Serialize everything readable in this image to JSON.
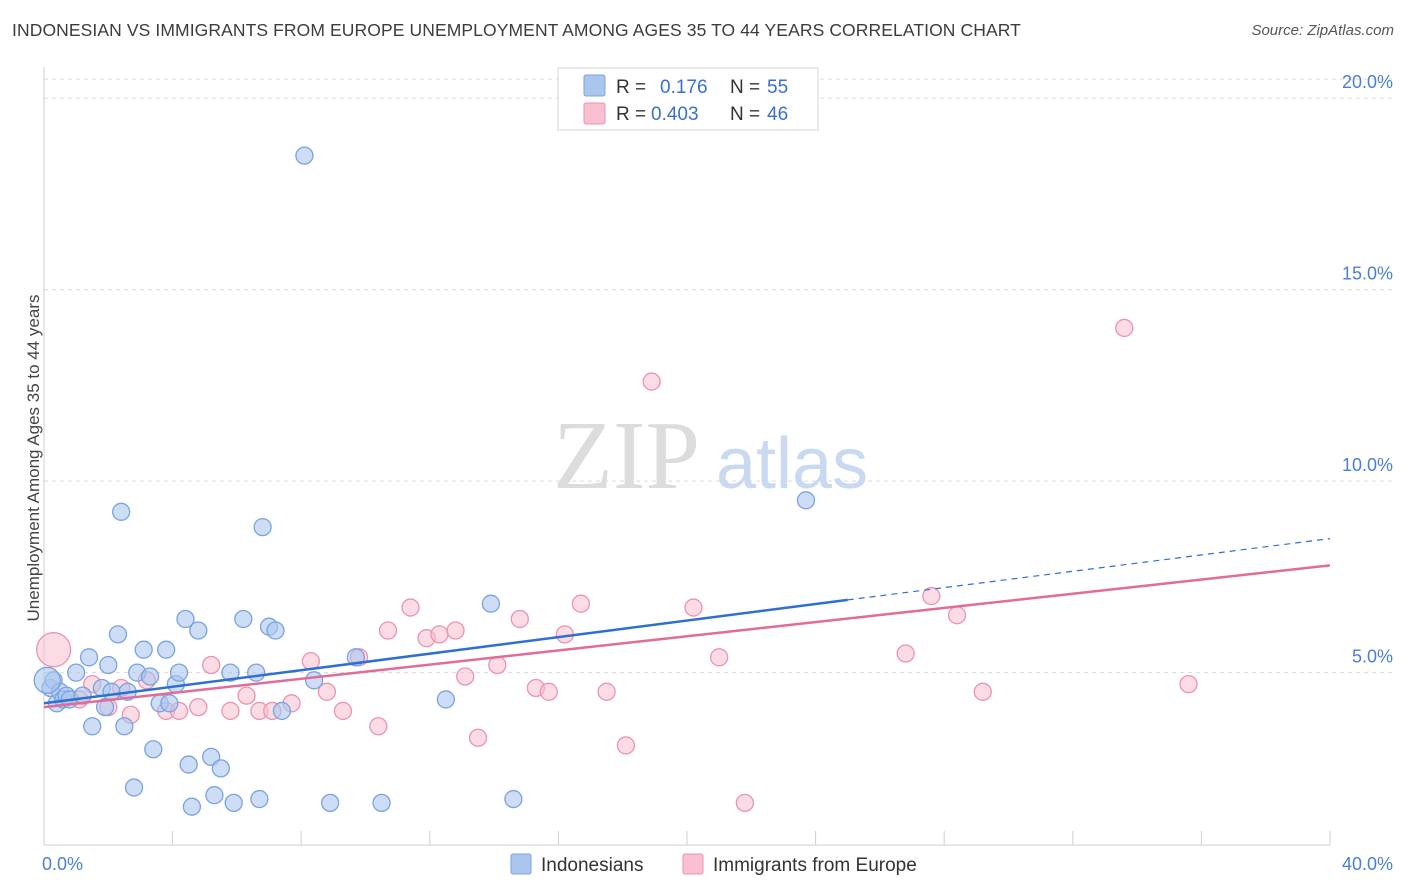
{
  "title": "INDONESIAN VS IMMIGRANTS FROM EUROPE UNEMPLOYMENT AMONG AGES 35 TO 44 YEARS CORRELATION CHART",
  "source": "Source: ZipAtlas.com",
  "watermark": {
    "zip": "ZIP",
    "atlas": "atlas"
  },
  "colors": {
    "blue_fill": "#aac6ee",
    "blue_stroke": "#7aa3df",
    "blue_line": "#2f6fd0",
    "pink_fill": "#f7bfd0",
    "pink_stroke": "#eb93b0",
    "pink_line": "#e26b97",
    "axis_text": "#4a7fd4",
    "grid": "#d9d9d9"
  },
  "legend": {
    "rows": [
      {
        "r_label": "R =",
        "r_value": "0.176",
        "n_label": "N =",
        "n_value": "55"
      },
      {
        "r_label": "R =",
        "r_value": "0.403",
        "n_label": "N =",
        "n_value": "46"
      }
    ]
  },
  "chart_data": {
    "type": "scatter",
    "title": "INDONESIAN VS IMMIGRANTS FROM EUROPE UNEMPLOYMENT AMONG AGES 35 TO 44 YEARS CORRELATION CHART",
    "xlabel": "",
    "ylabel": "Unemployment Among Ages 35 to 44 years",
    "xlim": [
      0,
      40
    ],
    "ylim": [
      0.5,
      20.5
    ],
    "x_tick_labels": [
      {
        "value": 0,
        "label": "0.0%"
      },
      {
        "value": 40,
        "label": "40.0%"
      }
    ],
    "y_tick_labels": [
      {
        "value": 5,
        "label": "5.0%"
      },
      {
        "value": 10,
        "label": "10.0%"
      },
      {
        "value": 15,
        "label": "15.0%"
      },
      {
        "value": 20,
        "label": "20.0%"
      }
    ],
    "series": [
      {
        "name": "Indonesians",
        "r": 0.176,
        "n": 55,
        "trend": {
          "x0": 0,
          "y0": 4.2,
          "x1": 25,
          "y1": 6.9,
          "dash_to_x": 40,
          "dash_to_y": 8.5
        },
        "points": [
          [
            0.2,
            4.6
          ],
          [
            0.3,
            4.8
          ],
          [
            0.4,
            4.2
          ],
          [
            0.5,
            4.5
          ],
          [
            0.6,
            4.3
          ],
          [
            0.7,
            4.4
          ],
          [
            0.8,
            4.3
          ],
          [
            1.0,
            5.0
          ],
          [
            1.4,
            5.4
          ],
          [
            1.5,
            3.6
          ],
          [
            1.8,
            4.6
          ],
          [
            1.9,
            4.1
          ],
          [
            2.0,
            5.2
          ],
          [
            2.1,
            4.5
          ],
          [
            2.3,
            6.0
          ],
          [
            2.4,
            9.2
          ],
          [
            2.5,
            3.6
          ],
          [
            2.6,
            4.5
          ],
          [
            2.8,
            2.0
          ],
          [
            2.9,
            5.0
          ],
          [
            3.1,
            5.6
          ],
          [
            3.3,
            4.9
          ],
          [
            3.4,
            3.0
          ],
          [
            3.6,
            4.2
          ],
          [
            3.8,
            5.6
          ],
          [
            3.9,
            4.2
          ],
          [
            4.1,
            4.7
          ],
          [
            4.2,
            5.0
          ],
          [
            4.4,
            6.4
          ],
          [
            4.5,
            2.6
          ],
          [
            4.6,
            1.5
          ],
          [
            4.8,
            6.1
          ],
          [
            5.2,
            2.8
          ],
          [
            5.3,
            1.8
          ],
          [
            5.5,
            2.5
          ],
          [
            5.8,
            5.0
          ],
          [
            5.9,
            1.6
          ],
          [
            6.2,
            6.4
          ],
          [
            6.6,
            5.0
          ],
          [
            6.7,
            1.7
          ],
          [
            6.8,
            8.8
          ],
          [
            7.0,
            6.2
          ],
          [
            7.2,
            6.1
          ],
          [
            7.4,
            4.0
          ],
          [
            8.1,
            18.5
          ],
          [
            8.4,
            4.8
          ],
          [
            8.9,
            1.6
          ],
          [
            9.7,
            5.4
          ],
          [
            10.5,
            1.6
          ],
          [
            12.5,
            4.3
          ],
          [
            13.9,
            6.8
          ],
          [
            14.6,
            1.7
          ],
          [
            23.7,
            9.5
          ],
          [
            0.1,
            4.8
          ],
          [
            1.2,
            4.4
          ]
        ]
      },
      {
        "name": "Immigrants from Europe",
        "r": 0.403,
        "n": 46,
        "trend": {
          "x0": 0,
          "y0": 4.1,
          "x1": 40,
          "y1": 7.8
        },
        "points": [
          [
            0.3,
            5.6
          ],
          [
            1.1,
            4.3
          ],
          [
            1.5,
            4.7
          ],
          [
            2.0,
            4.1
          ],
          [
            2.4,
            4.6
          ],
          [
            2.7,
            3.9
          ],
          [
            3.2,
            4.8
          ],
          [
            3.8,
            4.0
          ],
          [
            4.2,
            4.0
          ],
          [
            4.8,
            4.1
          ],
          [
            5.2,
            5.2
          ],
          [
            5.8,
            4.0
          ],
          [
            6.3,
            4.4
          ],
          [
            6.7,
            4.0
          ],
          [
            7.1,
            4.0
          ],
          [
            7.7,
            4.2
          ],
          [
            8.3,
            5.3
          ],
          [
            8.8,
            4.5
          ],
          [
            9.3,
            4.0
          ],
          [
            9.8,
            5.4
          ],
          [
            10.4,
            3.6
          ],
          [
            10.7,
            6.1
          ],
          [
            11.4,
            6.7
          ],
          [
            11.9,
            5.9
          ],
          [
            12.3,
            6.0
          ],
          [
            12.8,
            6.1
          ],
          [
            13.1,
            4.9
          ],
          [
            13.5,
            3.3
          ],
          [
            14.1,
            5.2
          ],
          [
            14.8,
            6.4
          ],
          [
            15.3,
            4.6
          ],
          [
            15.7,
            4.5
          ],
          [
            16.2,
            6.0
          ],
          [
            16.7,
            6.8
          ],
          [
            17.5,
            4.5
          ],
          [
            18.1,
            3.1
          ],
          [
            18.9,
            12.6
          ],
          [
            20.2,
            6.7
          ],
          [
            21.0,
            5.4
          ],
          [
            21.8,
            1.6
          ],
          [
            26.8,
            5.5
          ],
          [
            27.6,
            7.0
          ],
          [
            28.4,
            6.5
          ],
          [
            29.2,
            4.5
          ],
          [
            33.6,
            14.0
          ],
          [
            35.6,
            4.7
          ]
        ]
      }
    ],
    "legend_position": "top-center",
    "grid": true
  },
  "bottom_legend": [
    {
      "label": "Indonesians"
    },
    {
      "label": "Immigrants from Europe"
    }
  ]
}
